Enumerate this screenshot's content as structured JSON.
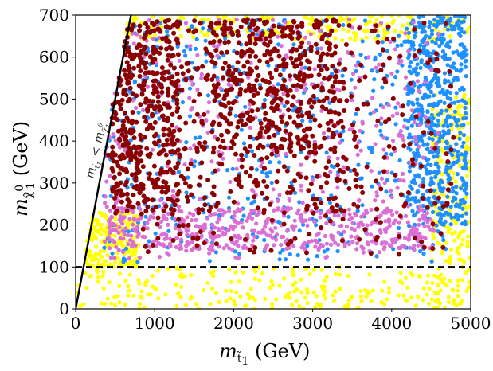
{
  "chart_data": {
    "type": "scatter",
    "title": "",
    "xlabel": {
      "base": "m",
      "sub": "t̃",
      "sub2": "1",
      "unit": " (GeV)"
    },
    "ylabel": {
      "base": "m",
      "sub": "χ̃",
      "sup": "0",
      "sub2": "1",
      "unit": " (GeV)"
    },
    "xlim": [
      0,
      5000
    ],
    "ylim": [
      0,
      700
    ],
    "xticks": [
      0,
      1000,
      2000,
      3000,
      4000,
      5000
    ],
    "yticks": [
      0,
      100,
      200,
      300,
      400,
      500,
      600,
      700
    ],
    "grid": false,
    "colors": {
      "yellow": "#ffff00",
      "blue": "#1e90ff",
      "orchid": "#da70d6",
      "darkred": "#8b0000"
    },
    "series": [
      {
        "name": "yellow",
        "color": "#ffff00",
        "regions": [
          {
            "x": [
              0,
              4650
            ],
            "y": [
              0,
              100
            ]
          },
          {
            "x": [
              120,
              800
            ],
            "y": [
              100,
              230
            ]
          },
          {
            "x": [
              4500,
              5000
            ],
            "y": [
              0,
              520
            ]
          },
          {
            "x": [
              600,
              5000
            ],
            "y": [
              640,
              700
            ]
          }
        ]
      },
      {
        "name": "blue",
        "color": "#1e90ff",
        "regions": [
          {
            "x": [
              350,
              4700
            ],
            "y": [
              110,
              690
            ]
          },
          {
            "x": [
              4200,
              4950
            ],
            "y": [
              200,
              700
            ]
          }
        ]
      },
      {
        "name": "orchid",
        "color": "#da70d6",
        "regions": [
          {
            "x": [
              350,
              4600
            ],
            "y": [
              120,
              690
            ]
          },
          {
            "x": [
              400,
              4500
            ],
            "y": [
              140,
              240
            ]
          }
        ]
      },
      {
        "name": "darkred",
        "color": "#8b0000",
        "regions": [
          {
            "x": [
              450,
              3600
            ],
            "y": [
              220,
              690
            ]
          },
          {
            "x": [
              450,
              1300
            ],
            "y": [
              230,
              690
            ]
          },
          {
            "x": [
              1700,
              3300
            ],
            "y": [
              380,
              690
            ]
          },
          {
            "x": [
              400,
              4800
            ],
            "y": [
              130,
              690
            ]
          }
        ]
      }
    ],
    "lines": [
      {
        "name": "kinematic-boundary",
        "style": "solid",
        "x": [
          0,
          700
        ],
        "y": [
          0,
          700
        ]
      },
      {
        "name": "lep-bound",
        "style": "dashed",
        "x": [
          0,
          5000
        ],
        "y": [
          100,
          100
        ]
      }
    ],
    "annotations": [
      {
        "text_parts": {
          "a": "m",
          "a_sub": "t̃",
          "a_sub2": "1",
          "rel": " < ",
          "b": "m",
          "b_sub": "χ̃",
          "b_sup": "0",
          "b_sub2": "1"
        },
        "x": 260,
        "y": 430,
        "rotation_deg": -77
      }
    ]
  }
}
